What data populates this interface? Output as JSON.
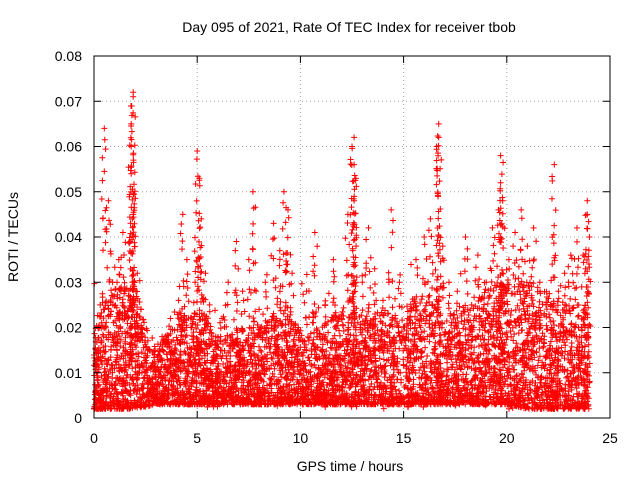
{
  "chart_data": {
    "type": "scatter",
    "title": "Day 095 of 2021, Rate Of TEC Index for receiver tbob",
    "xlabel": "GPS time / hours",
    "ylabel": "ROTI / TECUs",
    "xlim": [
      0,
      25
    ],
    "ylim": [
      0,
      0.08
    ],
    "x_ticks": [
      "0",
      "5",
      "10",
      "15",
      "20",
      "25"
    ],
    "y_ticks": [
      "0",
      "0.01",
      "0.02",
      "0.03",
      "0.04",
      "0.05",
      "0.06",
      "0.07",
      "0.08"
    ],
    "grid": true,
    "marker": "+",
    "colors": {
      "points": "#ff0000",
      "grid": "#a0a0a0",
      "axes": "#000000"
    },
    "series": [
      {
        "x": [
          0.1,
          0.3,
          0.5,
          0.7,
          0.9,
          1.0,
          1.2,
          1.4,
          1.5,
          1.6,
          1.8,
          1.8,
          1.8,
          1.9,
          1.9,
          1.9,
          2.1,
          2.3,
          2.6,
          2.9,
          3.3,
          3.7,
          4.1,
          4.3,
          4.5,
          4.7,
          4.9,
          5.0,
          5.1,
          5.2,
          5.4,
          5.6,
          5.9,
          6.2,
          6.5,
          6.9,
          7.2,
          7.5,
          7.7,
          8.0,
          8.3,
          8.7,
          9.0,
          9.2,
          9.4,
          9.6,
          9.9,
          10.3,
          10.7,
          11.2,
          11.6,
          12.0,
          12.3,
          12.5,
          12.6,
          12.6,
          12.6,
          12.7,
          13.0,
          13.3,
          13.6,
          14.0,
          14.4,
          14.8,
          15.2,
          15.6,
          16.0,
          16.3,
          16.6,
          16.7,
          16.7,
          16.9,
          17.2,
          17.6,
          18.0,
          18.3,
          18.6,
          19.0,
          19.3,
          19.6,
          19.7,
          19.7,
          19.8,
          20.1,
          20.4,
          20.7,
          21.0,
          21.3,
          21.6,
          21.9,
          22.2,
          22.3,
          22.5,
          22.8,
          23.1,
          23.4,
          23.7,
          23.9,
          23.9,
          24.0
        ],
        "y": [
          0.012,
          0.025,
          0.064,
          0.048,
          0.03,
          0.018,
          0.035,
          0.041,
          0.028,
          0.022,
          0.054,
          0.06,
          0.065,
          0.071,
          0.072,
          0.045,
          0.032,
          0.02,
          0.015,
          0.012,
          0.018,
          0.022,
          0.026,
          0.045,
          0.035,
          0.02,
          0.03,
          0.059,
          0.053,
          0.044,
          0.032,
          0.025,
          0.018,
          0.022,
          0.03,
          0.039,
          0.028,
          0.035,
          0.05,
          0.024,
          0.03,
          0.043,
          0.037,
          0.05,
          0.046,
          0.032,
          0.02,
          0.028,
          0.041,
          0.025,
          0.035,
          0.022,
          0.045,
          0.06,
          0.062,
          0.056,
          0.048,
          0.038,
          0.03,
          0.042,
          0.033,
          0.026,
          0.046,
          0.03,
          0.022,
          0.035,
          0.04,
          0.044,
          0.06,
          0.062,
          0.065,
          0.038,
          0.03,
          0.028,
          0.04,
          0.025,
          0.036,
          0.03,
          0.042,
          0.046,
          0.052,
          0.058,
          0.048,
          0.035,
          0.041,
          0.046,
          0.038,
          0.042,
          0.03,
          0.025,
          0.034,
          0.056,
          0.028,
          0.032,
          0.036,
          0.042,
          0.036,
          0.048,
          0.045,
          0.04
        ],
        "description_envelope": {
          "x": [
            0,
            1,
            2,
            3,
            4,
            5,
            6,
            7,
            8,
            9,
            10,
            11,
            12,
            13,
            14,
            15,
            16,
            17,
            18,
            19,
            20,
            21,
            22,
            23,
            24
          ],
          "typical_min": [
            0.002,
            0.002,
            0.002,
            0.003,
            0.003,
            0.003,
            0.003,
            0.003,
            0.003,
            0.003,
            0.003,
            0.003,
            0.003,
            0.003,
            0.003,
            0.003,
            0.003,
            0.003,
            0.003,
            0.003,
            0.003,
            0.002,
            0.002,
            0.002,
            0.002
          ],
          "typical_max": [
            0.02,
            0.03,
            0.03,
            0.015,
            0.022,
            0.025,
            0.018,
            0.02,
            0.02,
            0.024,
            0.02,
            0.02,
            0.025,
            0.022,
            0.024,
            0.025,
            0.028,
            0.022,
            0.025,
            0.03,
            0.03,
            0.032,
            0.028,
            0.025,
            0.025
          ]
        }
      }
    ]
  }
}
